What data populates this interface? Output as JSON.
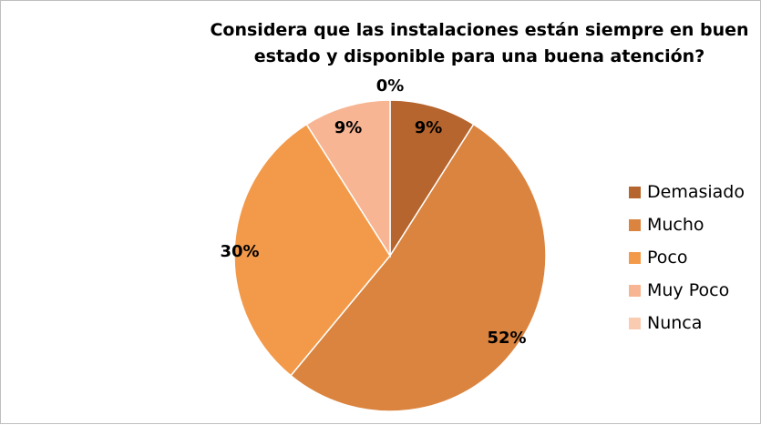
{
  "chart_data": {
    "type": "pie",
    "title_lines": [
      "Considera que las instalaciones están siempre en buen",
      "estado y disponible para una buena atención?"
    ],
    "categories": [
      "Demasiado",
      "Mucho",
      "Poco",
      "Muy Poco",
      "Nunca"
    ],
    "values": [
      9,
      52,
      30,
      9,
      0
    ],
    "labels": [
      "9%",
      "52%",
      "30%",
      "9%",
      "0%"
    ],
    "colors": [
      "#b5652d",
      "#da843f",
      "#f39a4a",
      "#f7b593",
      "#f9cbb1"
    ],
    "legend_position": "right"
  }
}
